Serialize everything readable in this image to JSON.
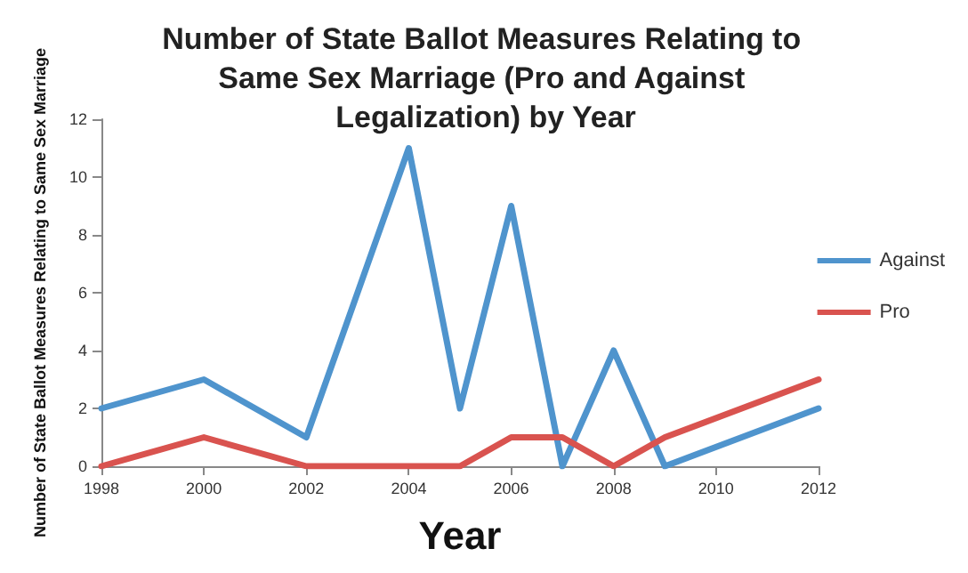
{
  "chart_data": {
    "type": "line",
    "title": "Number of State Ballot Measures Relating to Same Sex Marriage (Pro and Against Legalization) by Year",
    "xlabel": "Year",
    "ylabel": "Number of State Ballot Measures Relating to Same Sex Marriage",
    "x": [
      1998,
      2000,
      2002,
      2004,
      2005,
      2006,
      2007,
      2008,
      2009,
      2012
    ],
    "series": [
      {
        "name": "Against",
        "color": "#4f94cd",
        "values": [
          2,
          3,
          1,
          11,
          2,
          9,
          0,
          4,
          0,
          2
        ]
      },
      {
        "name": "Pro",
        "color": "#d9534f",
        "values": [
          0,
          1,
          0,
          0,
          0,
          1,
          1,
          0,
          1,
          3
        ]
      }
    ],
    "xlim": [
      1998,
      2012
    ],
    "xticks": [
      1998,
      2000,
      2002,
      2004,
      2006,
      2008,
      2010,
      2012
    ],
    "ylim": [
      0,
      12
    ],
    "yticks": [
      0,
      2,
      4,
      6,
      8,
      10,
      12
    ],
    "grid": false,
    "legend": "right",
    "marker": "none",
    "line_style": "solid"
  }
}
